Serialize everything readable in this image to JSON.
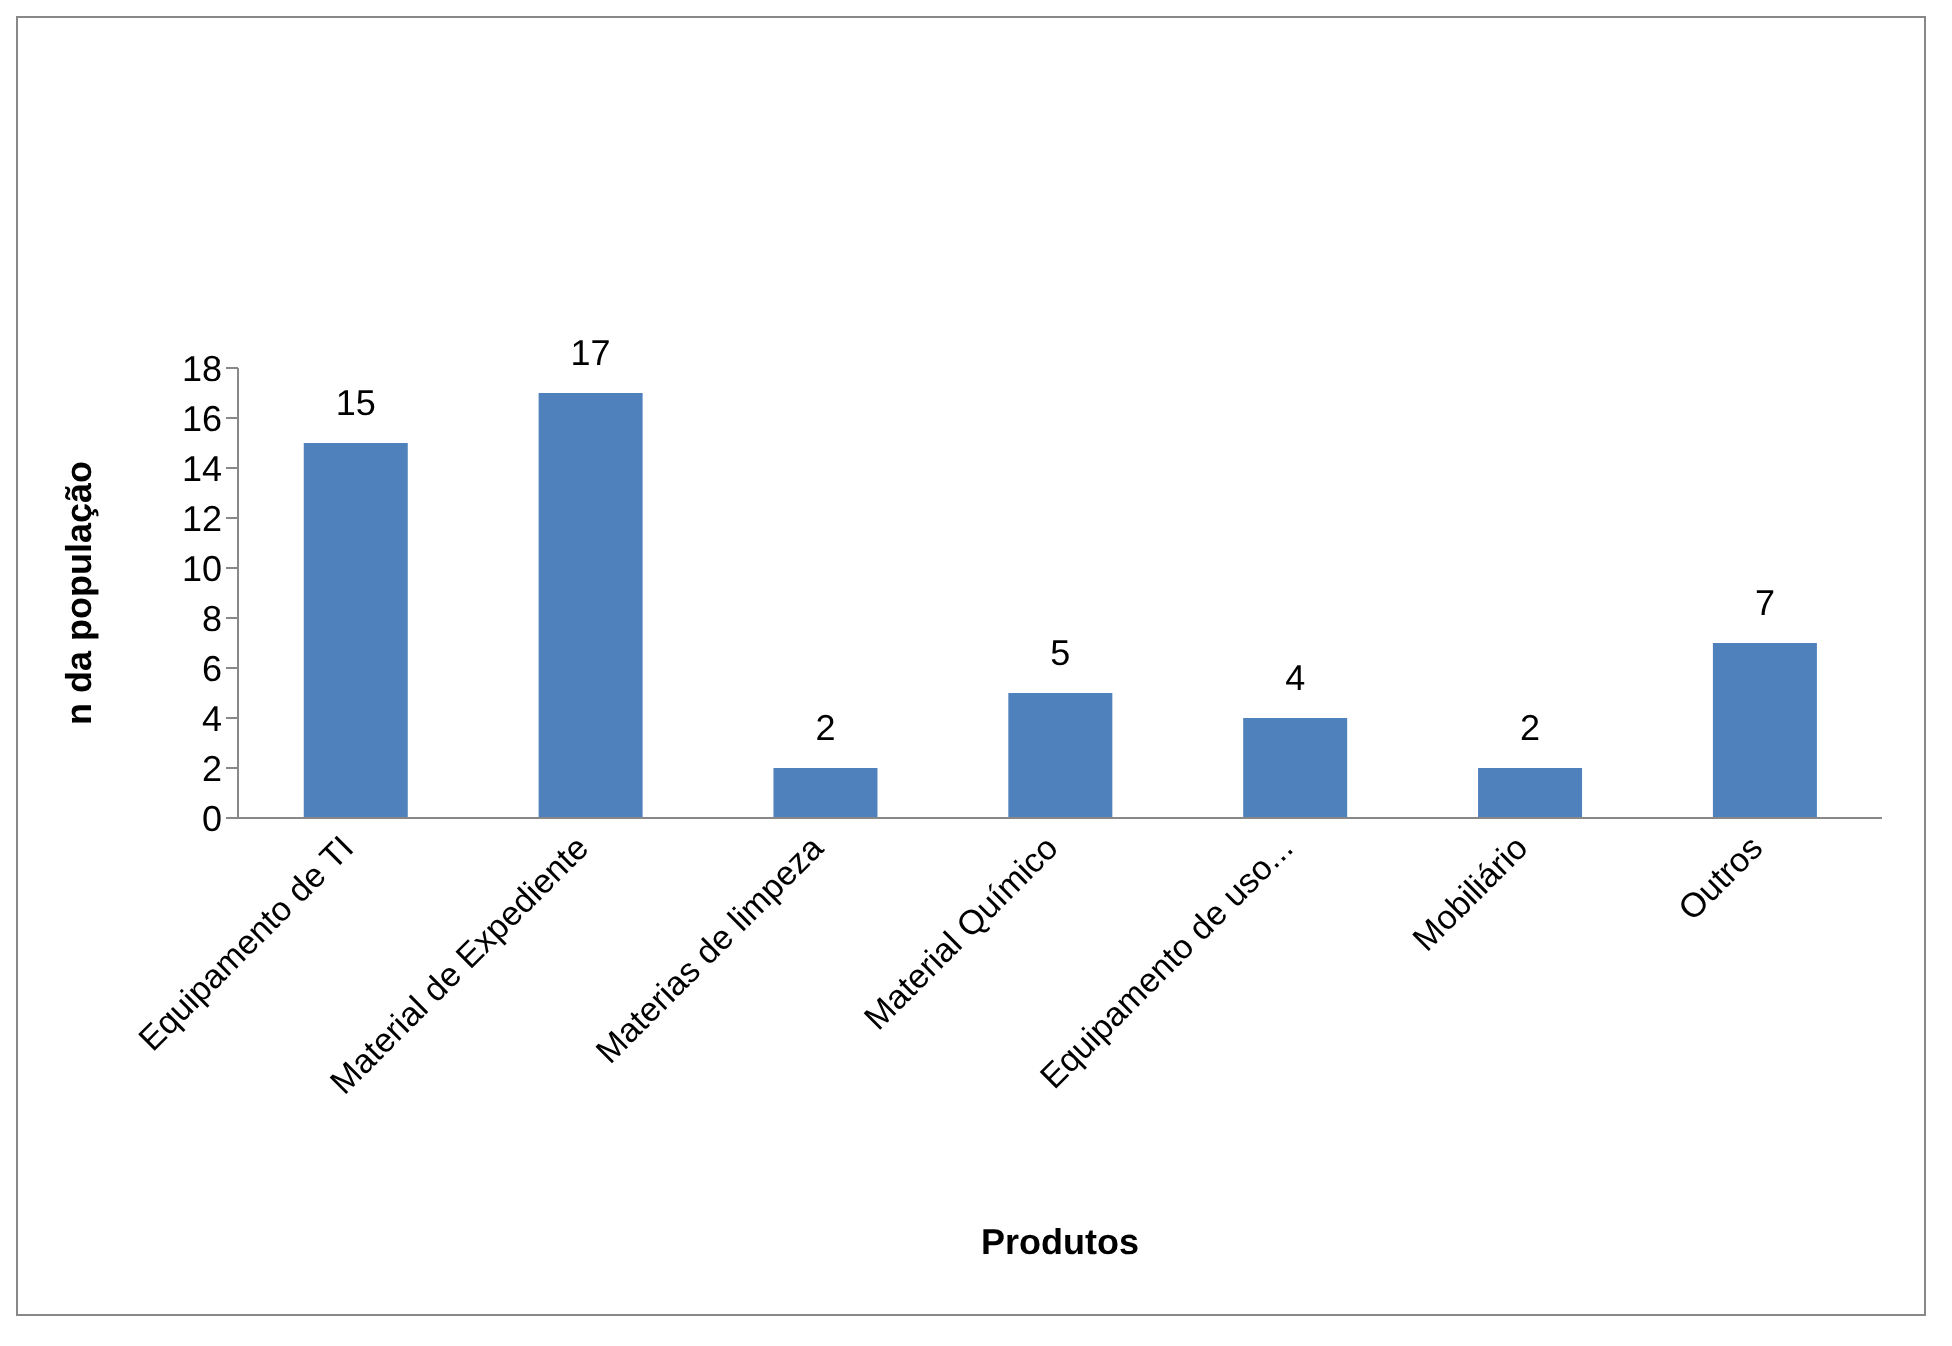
{
  "chart_data": {
    "type": "bar",
    "xlabel": "Produtos",
    "ylabel": "n da população",
    "categories": [
      "Equipamento de TI",
      "Material de Expediente",
      "Materias de limpeza",
      "Material Químico",
      "Equipamento de uso...",
      "Mobiliário",
      "Outros"
    ],
    "values": [
      15,
      17,
      2,
      5,
      4,
      2,
      7
    ],
    "color": "#4f81bd",
    "ylim": [
      0,
      18
    ],
    "yticks": [
      0,
      2,
      4,
      6,
      8,
      10,
      12,
      14,
      16,
      18
    ],
    "data_labels": true
  }
}
